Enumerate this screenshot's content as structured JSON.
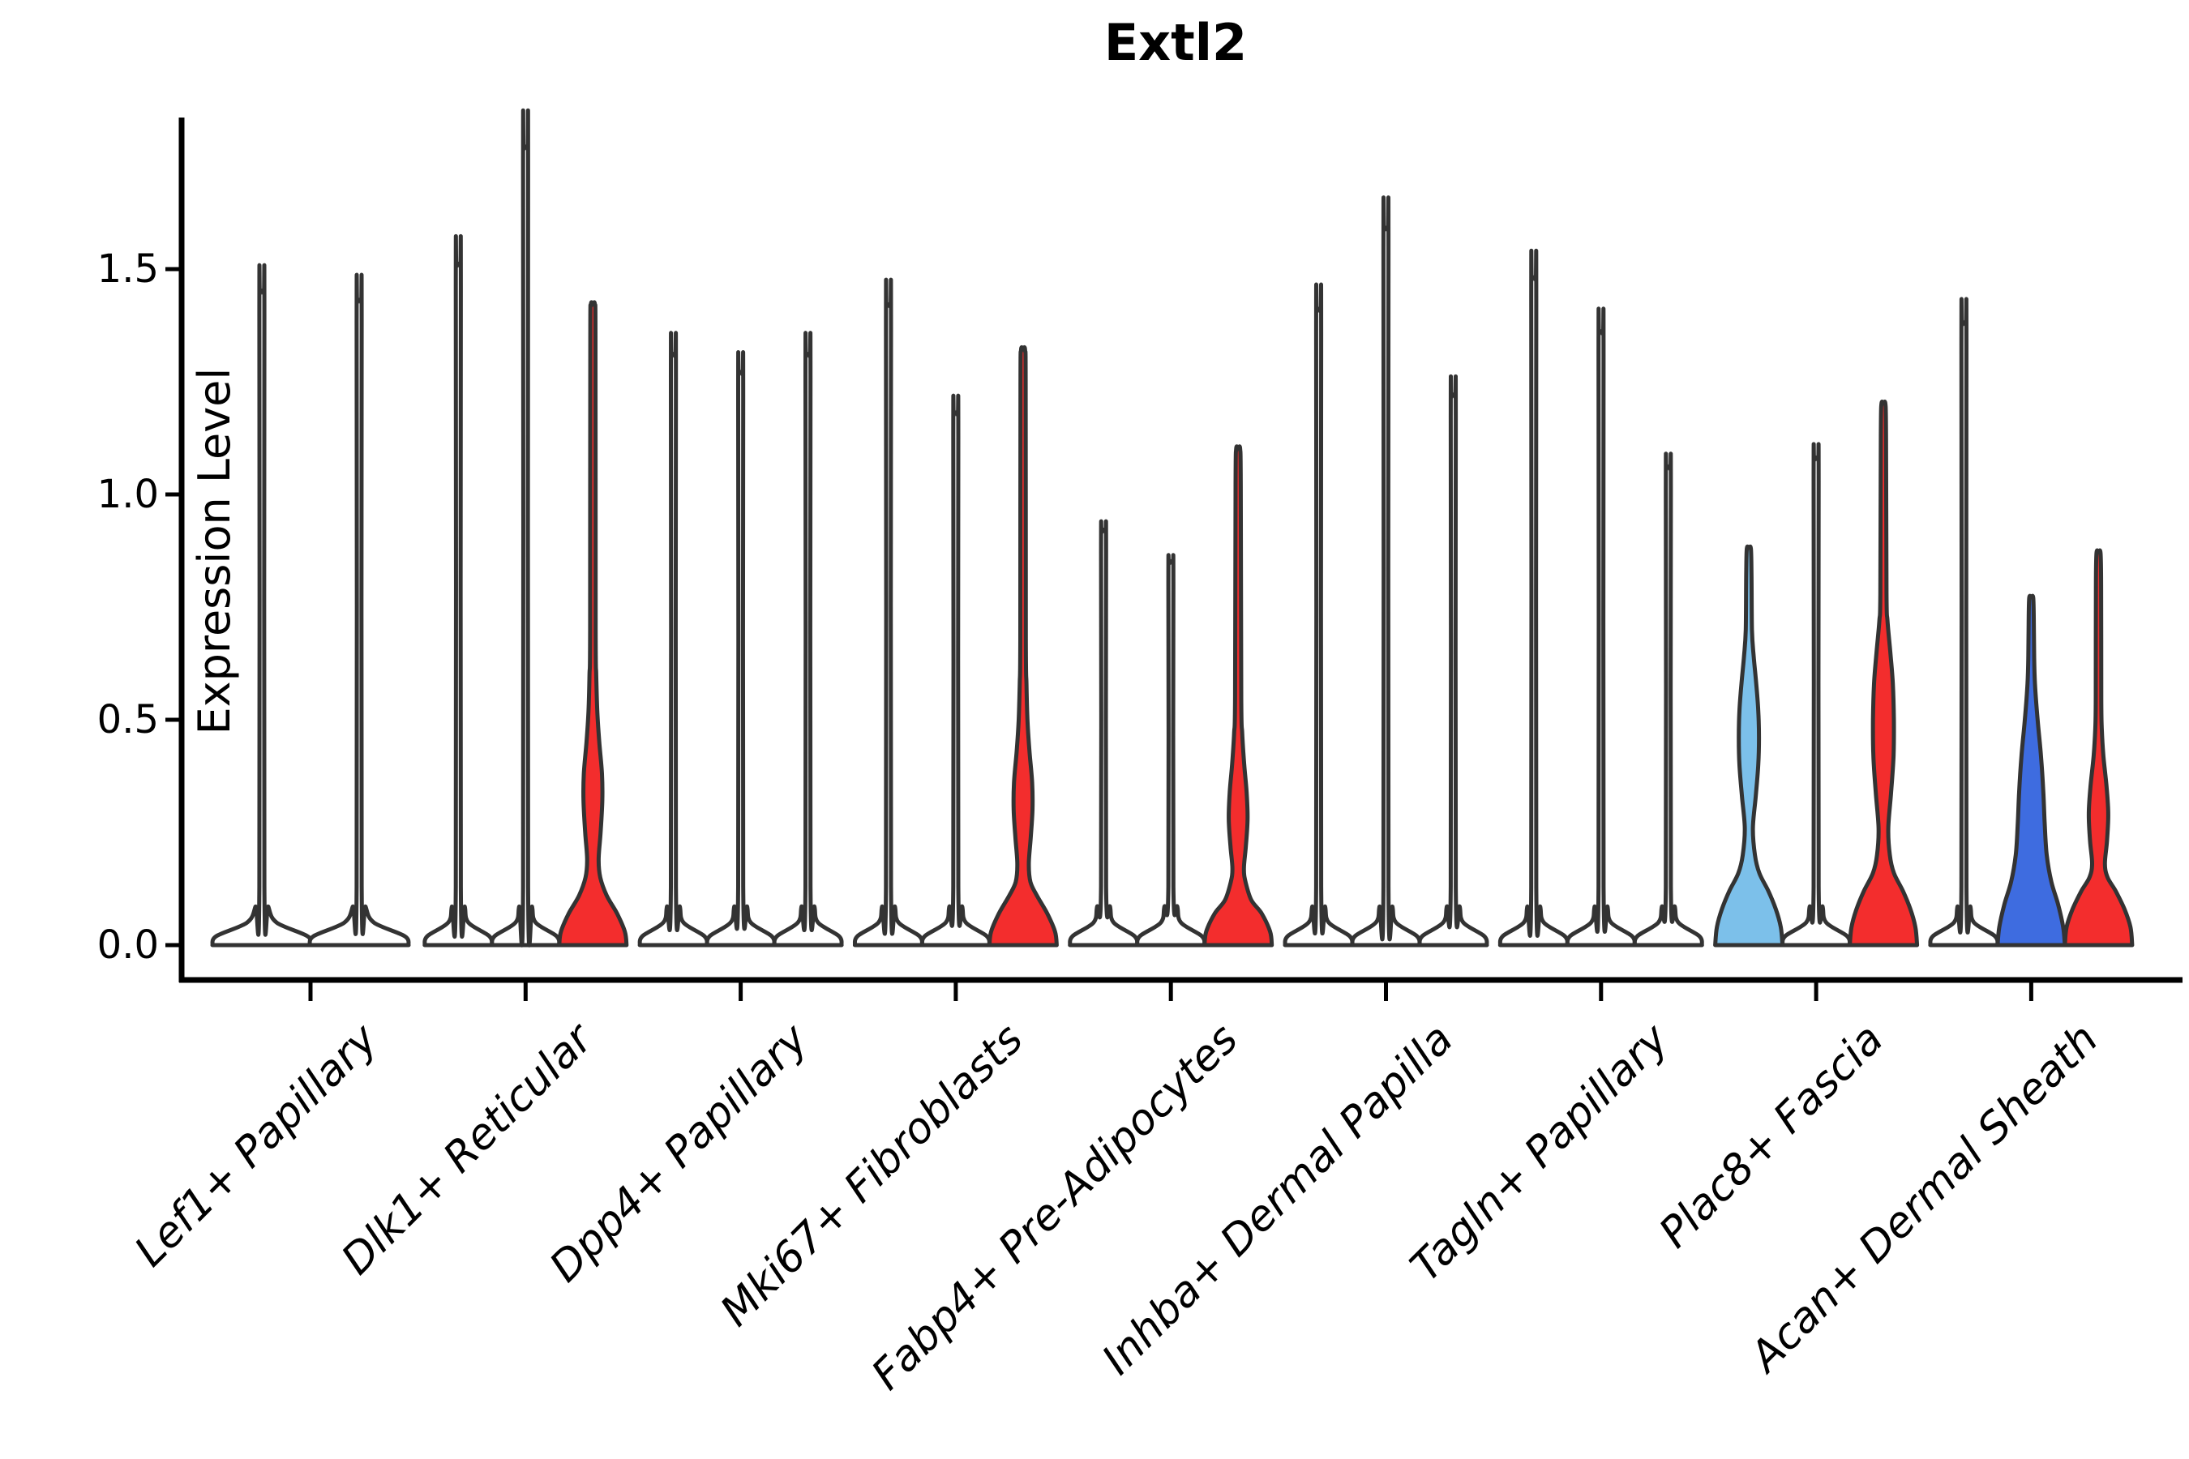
{
  "chart_data": {
    "type": "violin",
    "title": "Extl2",
    "ylabel": "Expression Level",
    "ylim": [
      0,
      1.86
    ],
    "grid": false,
    "legend": "none",
    "ytick_values": [
      0.0,
      0.5,
      1.0,
      1.5
    ],
    "ytick_labels": [
      "0.0",
      "0.5",
      "1.0",
      "1.5"
    ],
    "colors": {
      "outline": "#333333",
      "red": "#f32d2d",
      "light_blue": "#7cc0ea",
      "blue": "#3e6ce0",
      "spike_fill": "#ffffff"
    },
    "categories": [
      "Lef1+ Papillary",
      "Dlk1+ Reticular",
      "Dpp4+ Papillary",
      "Mki67+ Fibroblasts",
      "Fabp4+ Pre-Adipocytes",
      "Inhba+ Dermal Papilla",
      "Tagln+ Papillary",
      "Plac8+ Fascia",
      "Acan+ Dermal Sheath"
    ],
    "groups": [
      {
        "label": "Lef1+ Papillary",
        "violins": [
          {
            "kind": "spike",
            "max": 1.45,
            "color": "spike_fill"
          },
          {
            "kind": "spike",
            "max": 1.43,
            "color": "spike_fill"
          }
        ]
      },
      {
        "label": "Dlk1+ Reticular",
        "violins": [
          {
            "kind": "spike",
            "max": 1.51,
            "color": "spike_fill"
          },
          {
            "kind": "spike",
            "max": 1.77,
            "color": "spike_fill"
          },
          {
            "kind": "density",
            "max": 1.42,
            "color": "red",
            "profile": [
              [
                0,
                1.0
              ],
              [
                0.03,
                0.95
              ],
              [
                0.07,
                0.72
              ],
              [
                0.11,
                0.41
              ],
              [
                0.15,
                0.22
              ],
              [
                0.19,
                0.17
              ],
              [
                0.25,
                0.23
              ],
              [
                0.32,
                0.28
              ],
              [
                0.38,
                0.27
              ],
              [
                0.45,
                0.19
              ],
              [
                0.52,
                0.13
              ],
              [
                0.6,
                0.1
              ],
              [
                0.7,
                0.082
              ],
              [
                1.34,
                0.078
              ],
              [
                1.42,
                0.06
              ]
            ]
          }
        ]
      },
      {
        "label": "Dpp4+ Papillary",
        "violins": [
          {
            "kind": "spike",
            "max": 1.31,
            "color": "spike_fill"
          },
          {
            "kind": "spike",
            "max": 1.27,
            "color": "spike_fill"
          },
          {
            "kind": "spike",
            "max": 1.31,
            "color": "spike_fill"
          }
        ]
      },
      {
        "label": "Mki67+ Fibroblasts",
        "violins": [
          {
            "kind": "spike",
            "max": 1.42,
            "color": "spike_fill"
          },
          {
            "kind": "spike",
            "max": 1.18,
            "color": "spike_fill"
          },
          {
            "kind": "density",
            "max": 1.32,
            "color": "red",
            "profile": [
              [
                0,
                1.0
              ],
              [
                0.03,
                0.95
              ],
              [
                0.07,
                0.72
              ],
              [
                0.11,
                0.41
              ],
              [
                0.14,
                0.22
              ],
              [
                0.18,
                0.17
              ],
              [
                0.24,
                0.23
              ],
              [
                0.3,
                0.28
              ],
              [
                0.36,
                0.27
              ],
              [
                0.43,
                0.19
              ],
              [
                0.5,
                0.13
              ],
              [
                0.58,
                0.1
              ],
              [
                0.68,
                0.082
              ],
              [
                1.24,
                0.078
              ],
              [
                1.32,
                0.06
              ]
            ]
          }
        ]
      },
      {
        "label": "Fabp4+ Pre-Adipocytes",
        "violins": [
          {
            "kind": "spike",
            "max": 0.92,
            "color": "spike_fill"
          },
          {
            "kind": "spike",
            "max": 0.85,
            "color": "spike_fill"
          },
          {
            "kind": "density",
            "max": 1.1,
            "color": "red",
            "profile": [
              [
                0,
                1.0
              ],
              [
                0.03,
                0.95
              ],
              [
                0.07,
                0.7
              ],
              [
                0.1,
                0.39
              ],
              [
                0.14,
                0.22
              ],
              [
                0.17,
                0.17
              ],
              [
                0.22,
                0.23
              ],
              [
                0.28,
                0.28
              ],
              [
                0.34,
                0.25
              ],
              [
                0.4,
                0.18
              ],
              [
                0.47,
                0.12
              ],
              [
                0.55,
                0.092
              ],
              [
                1.02,
                0.078
              ],
              [
                1.1,
                0.06
              ]
            ]
          }
        ]
      },
      {
        "label": "Inhba+ Dermal Papilla",
        "violins": [
          {
            "kind": "spike",
            "max": 1.41,
            "color": "spike_fill"
          },
          {
            "kind": "spike",
            "max": 1.59,
            "color": "spike_fill"
          },
          {
            "kind": "spike",
            "max": 1.22,
            "color": "spike_fill"
          }
        ]
      },
      {
        "label": "Tagln+ Papillary",
        "violins": [
          {
            "kind": "spike",
            "max": 1.48,
            "color": "spike_fill"
          },
          {
            "kind": "spike",
            "max": 1.36,
            "color": "spike_fill"
          },
          {
            "kind": "spike",
            "max": 1.06,
            "color": "spike_fill"
          }
        ]
      },
      {
        "label": "Plac8+ Fascia",
        "violins": [
          {
            "kind": "density",
            "max": 0.88,
            "color": "light_blue",
            "profile": [
              [
                0,
                1.0
              ],
              [
                0.04,
                0.95
              ],
              [
                0.08,
                0.8
              ],
              [
                0.12,
                0.58
              ],
              [
                0.16,
                0.31
              ],
              [
                0.2,
                0.18
              ],
              [
                0.26,
                0.12
              ],
              [
                0.33,
                0.205
              ],
              [
                0.4,
                0.28
              ],
              [
                0.46,
                0.3
              ],
              [
                0.52,
                0.28
              ],
              [
                0.58,
                0.22
              ],
              [
                0.64,
                0.145
              ],
              [
                0.7,
                0.092
              ],
              [
                0.83,
                0.078
              ],
              [
                0.88,
                0.06
              ]
            ]
          },
          {
            "kind": "spike",
            "max": 1.08,
            "color": "spike_fill"
          },
          {
            "kind": "density",
            "max": 1.2,
            "color": "red",
            "profile": [
              [
                0,
                1.0
              ],
              [
                0.04,
                0.95
              ],
              [
                0.08,
                0.8
              ],
              [
                0.12,
                0.58
              ],
              [
                0.16,
                0.31
              ],
              [
                0.2,
                0.19
              ],
              [
                0.26,
                0.145
              ],
              [
                0.34,
                0.23
              ],
              [
                0.42,
                0.3
              ],
              [
                0.5,
                0.31
              ],
              [
                0.58,
                0.28
              ],
              [
                0.65,
                0.205
              ],
              [
                0.72,
                0.12
              ],
              [
                0.78,
                0.092
              ],
              [
                1.13,
                0.078
              ],
              [
                1.2,
                0.06
              ]
            ]
          }
        ]
      },
      {
        "label": "Acan+ Dermal Sheath",
        "violins": [
          {
            "kind": "spike",
            "max": 1.38,
            "color": "spike_fill"
          },
          {
            "kind": "density",
            "max": 0.77,
            "color": "blue",
            "profile": [
              [
                0,
                1.0
              ],
              [
                0.04,
                0.95
              ],
              [
                0.09,
                0.8
              ],
              [
                0.14,
                0.6
              ],
              [
                0.2,
                0.46
              ],
              [
                0.27,
                0.4
              ],
              [
                0.34,
                0.36
              ],
              [
                0.42,
                0.29
              ],
              [
                0.5,
                0.19
              ],
              [
                0.58,
                0.11
              ],
              [
                0.64,
                0.087
              ],
              [
                0.71,
                0.078
              ],
              [
                0.77,
                0.06
              ]
            ]
          },
          {
            "kind": "density",
            "max": 0.87,
            "color": "red",
            "profile": [
              [
                0,
                1.0
              ],
              [
                0.04,
                0.95
              ],
              [
                0.08,
                0.77
              ],
              [
                0.12,
                0.51
              ],
              [
                0.15,
                0.27
              ],
              [
                0.18,
                0.19
              ],
              [
                0.23,
                0.25
              ],
              [
                0.29,
                0.29
              ],
              [
                0.35,
                0.24
              ],
              [
                0.42,
                0.145
              ],
              [
                0.48,
                0.097
              ],
              [
                0.55,
                0.082
              ],
              [
                0.8,
                0.078
              ],
              [
                0.87,
                0.06
              ]
            ]
          }
        ]
      }
    ]
  }
}
